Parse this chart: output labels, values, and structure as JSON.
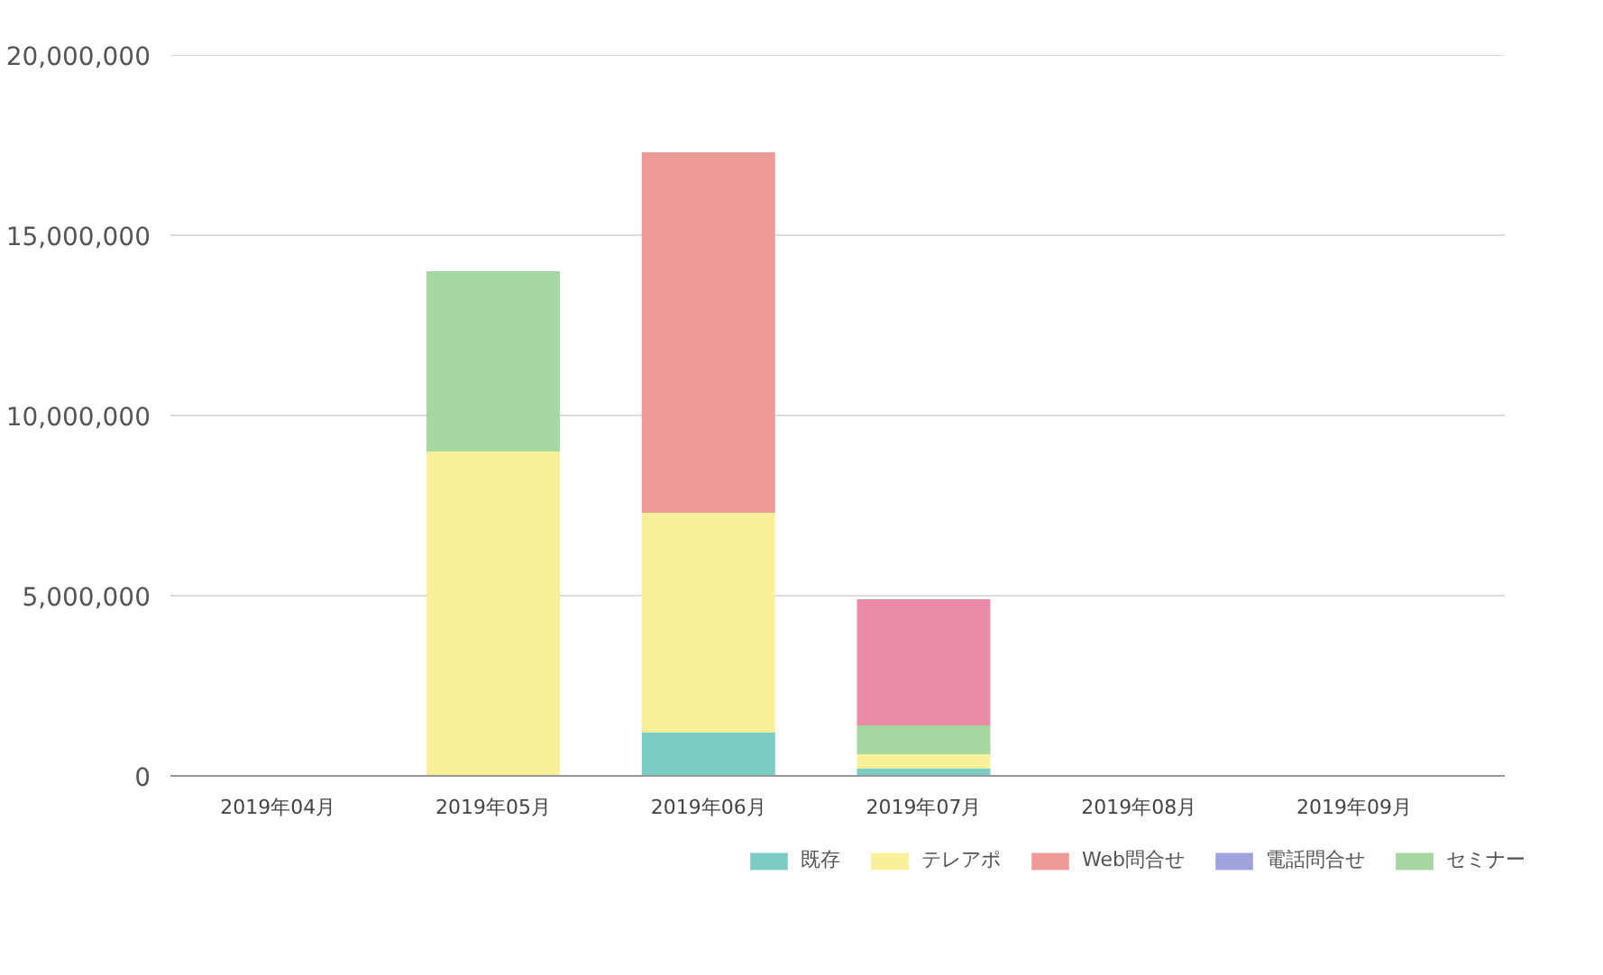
{
  "chart_data": {
    "type": "bar",
    "stacked": true,
    "categories": [
      "2019年04月",
      "2019年05月",
      "2019年06月",
      "2019年07月",
      "2019年08月",
      "2019年09月"
    ],
    "series": [
      {
        "name": "既存",
        "color": "#7accc4",
        "values": [
          0,
          0,
          1200000.0,
          200000.0,
          0,
          0
        ]
      },
      {
        "name": "テレアポ",
        "color": "#fbf09a",
        "values": [
          0,
          9000000.0,
          6100000.0,
          400000.0,
          0,
          0
        ]
      },
      {
        "name": "Web問合せ",
        "color": "#ee9a96",
        "values": [
          0,
          0,
          10000000.0,
          0,
          0,
          0
        ]
      },
      {
        "name": "電話問合せ",
        "color": "#9ea3dc",
        "values": [
          0,
          0,
          0,
          0,
          0,
          0
        ]
      },
      {
        "name": "セミナー",
        "color": "#a5d8a0",
        "values": [
          0,
          5000000.0,
          0,
          800000.0,
          0,
          0
        ]
      },
      {
        "color": "#ec8ba8",
        "values": [
          0,
          0,
          0,
          3500000.0,
          0,
          0
        ]
      }
    ],
    "ylim": [
      0,
      20000000
    ],
    "yticks": [
      {
        "value": 0,
        "label": "0"
      },
      {
        "value": 5000000,
        "label": "5,000,000"
      },
      {
        "value": 10000000,
        "label": "10,000,000"
      },
      {
        "value": 15000000,
        "label": "15,000,000"
      },
      {
        "value": 20000000,
        "label": "20,000,000"
      }
    ],
    "grid": "y",
    "legend": "bottom"
  }
}
